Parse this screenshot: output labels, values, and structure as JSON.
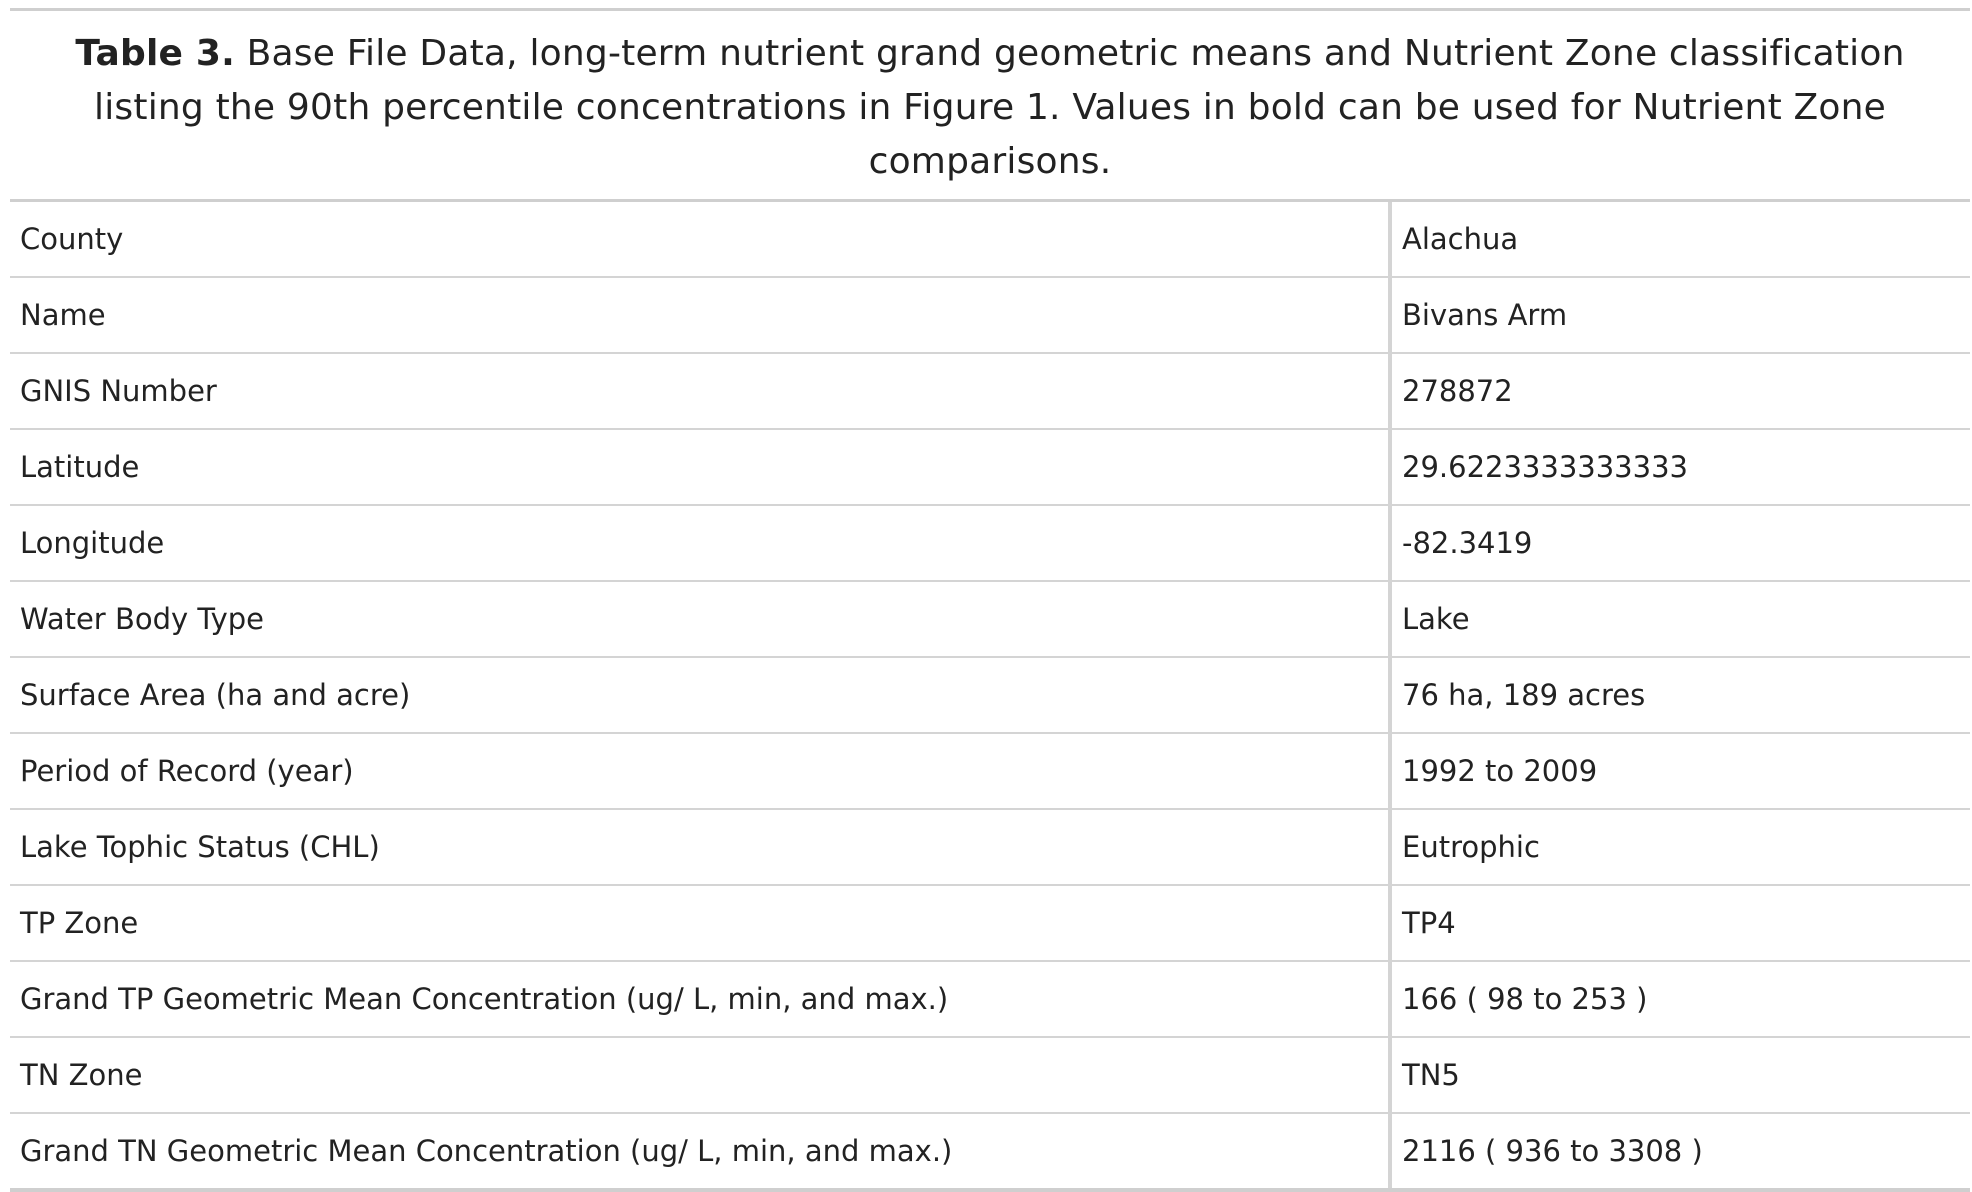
{
  "caption": {
    "lead": "Table 3.",
    "text": " Base File Data, long-term nutrient grand geometric means and Nutrient Zone classification listing the 90th percentile concentrations in Figure 1. Values in bold can be used for Nutrient Zone comparisons."
  },
  "rows": [
    {
      "label": "County",
      "value": "Alachua"
    },
    {
      "label": "Name",
      "value": "Bivans Arm"
    },
    {
      "label": "GNIS Number",
      "value": "278872"
    },
    {
      "label": "Latitude",
      "value": "29.6223333333333"
    },
    {
      "label": "Longitude",
      "value": "-82.3419"
    },
    {
      "label": "Water Body Type",
      "value": "Lake"
    },
    {
      "label": "Surface Area (ha and acre)",
      "value": "76 ha, 189 acres"
    },
    {
      "label": "Period of Record (year)",
      "value": "1992 to 2009"
    },
    {
      "label": "Lake Tophic Status (CHL)",
      "value": "Eutrophic"
    },
    {
      "label": "TP Zone",
      "value": "TP4"
    },
    {
      "label": "Grand TP Geometric Mean Concentration (ug/ L, min, and max.)",
      "value": "166 ( 98 to 253 )"
    },
    {
      "label": "TN Zone",
      "value": "TN5"
    },
    {
      "label": "Grand TN Geometric Mean Concentration (ug/ L, min, and max.)",
      "value": "2116 ( 936 to 3308 )"
    }
  ]
}
